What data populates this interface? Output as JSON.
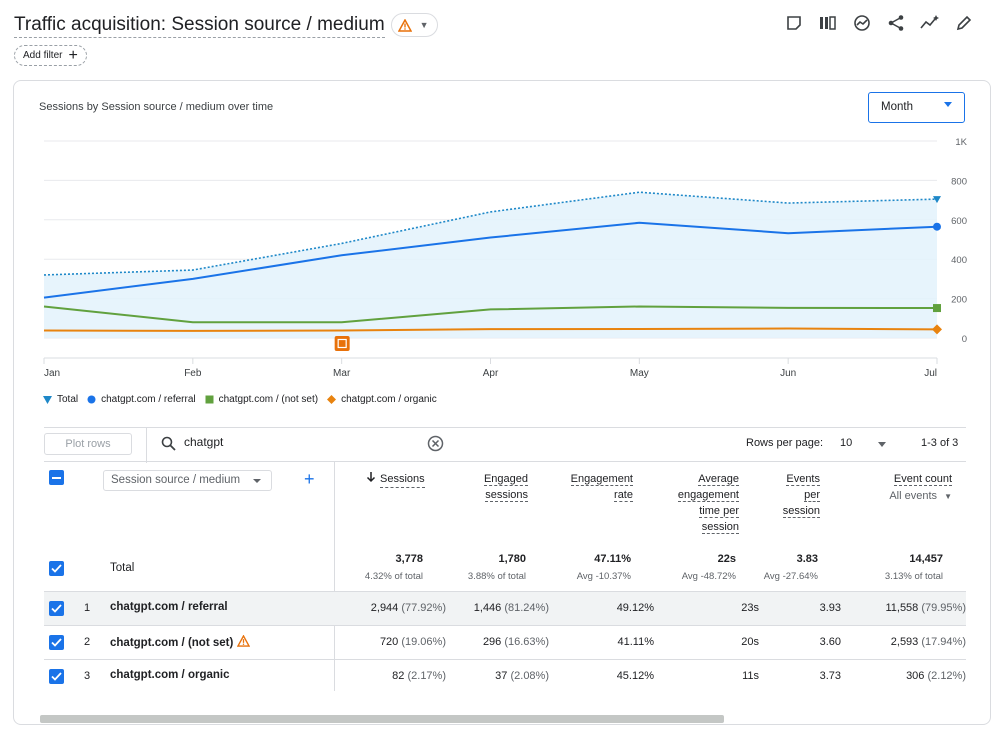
{
  "header": {
    "title": "Traffic acquisition: Session source / medium",
    "add_filter_label": "Add filter",
    "toolbar_icons": [
      "notes-icon",
      "compare-icon",
      "insights-icon",
      "share-icon",
      "trend-icon",
      "edit-icon"
    ]
  },
  "chart_card": {
    "title": "Sessions by Session source / medium over time",
    "granularity": "Month"
  },
  "chart_data": {
    "type": "line",
    "x": [
      "Jan",
      "Feb",
      "Mar",
      "Apr",
      "May",
      "Jun",
      "Jul"
    ],
    "y_ticks": [
      "1K",
      "800",
      "600",
      "400",
      "200",
      "0"
    ],
    "ylim": [
      0,
      1000
    ],
    "grid": true,
    "series": [
      {
        "name": "Total",
        "color": "#1e88c8",
        "values": [
          320,
          345,
          480,
          640,
          740,
          685,
          705
        ]
      },
      {
        "name": "chatgpt.com / referral",
        "color": "#1a73e8",
        "values": [
          205,
          300,
          420,
          510,
          585,
          532,
          565
        ]
      },
      {
        "name": "chatgpt.com / (not set)",
        "color": "#61a13e",
        "values": [
          160,
          80,
          80,
          145,
          160,
          153,
          152
        ]
      },
      {
        "name": "chatgpt.com / organic",
        "color": "#e8830f",
        "values": [
          38,
          36,
          38,
          45,
          46,
          48,
          44
        ]
      }
    ],
    "annotation": {
      "at": "Mar",
      "color": "#e8710a"
    }
  },
  "legend": [
    {
      "label": "Total",
      "color": "#1e88c8",
      "shape": "pin"
    },
    {
      "label": "chatgpt.com / referral",
      "color": "#1a73e8",
      "shape": "circle"
    },
    {
      "label": "chatgpt.com / (not set)",
      "color": "#61a13e",
      "shape": "square"
    },
    {
      "label": "chatgpt.com / organic",
      "color": "#e8830f",
      "shape": "diamond"
    }
  ],
  "table_controls": {
    "plot_rows_label": "Plot rows",
    "search_value": "chatgpt",
    "rows_per_page_label": "Rows per page:",
    "rows_per_page_value": "10",
    "page_range": "1-3 of 3"
  },
  "table": {
    "dimension_label": "Session source / medium",
    "metric_headers": [
      "Sessions",
      "Engaged sessions",
      "Engagement rate",
      "Average engagement time per session",
      "Events per session",
      "Event count"
    ],
    "event_count_filter": "All events",
    "totals": {
      "label": "Total",
      "values": [
        "3,778",
        "1,780",
        "47.11%",
        "22s",
        "3.83",
        "14,457"
      ],
      "sub": [
        "4.32% of total",
        "3.88% of total",
        "Avg -10.37%",
        "Avg -48.72%",
        "Avg -27.64%",
        "3.13% of total"
      ]
    },
    "rows": [
      {
        "index": "1",
        "dimension": "chatgpt.com / referral",
        "sessions": "2,944",
        "sessions_pct": "(77.92%)",
        "engaged": "1,446",
        "engaged_pct": "(81.24%)",
        "rate": "49.12%",
        "time": "23s",
        "eps": "3.93",
        "events": "11,558",
        "events_pct": "(79.95%)",
        "warning": false
      },
      {
        "index": "2",
        "dimension": "chatgpt.com / (not set)",
        "sessions": "720",
        "sessions_pct": "(19.06%)",
        "engaged": "296",
        "engaged_pct": "(16.63%)",
        "rate": "41.11%",
        "time": "20s",
        "eps": "3.60",
        "events": "2,593",
        "events_pct": "(17.94%)",
        "warning": true
      },
      {
        "index": "3",
        "dimension": "chatgpt.com / organic",
        "sessions": "82",
        "sessions_pct": "(2.17%)",
        "engaged": "37",
        "engaged_pct": "(2.08%)",
        "rate": "45.12%",
        "time": "11s",
        "eps": "3.73",
        "events": "306",
        "events_pct": "(2.12%)",
        "warning": false
      }
    ]
  }
}
